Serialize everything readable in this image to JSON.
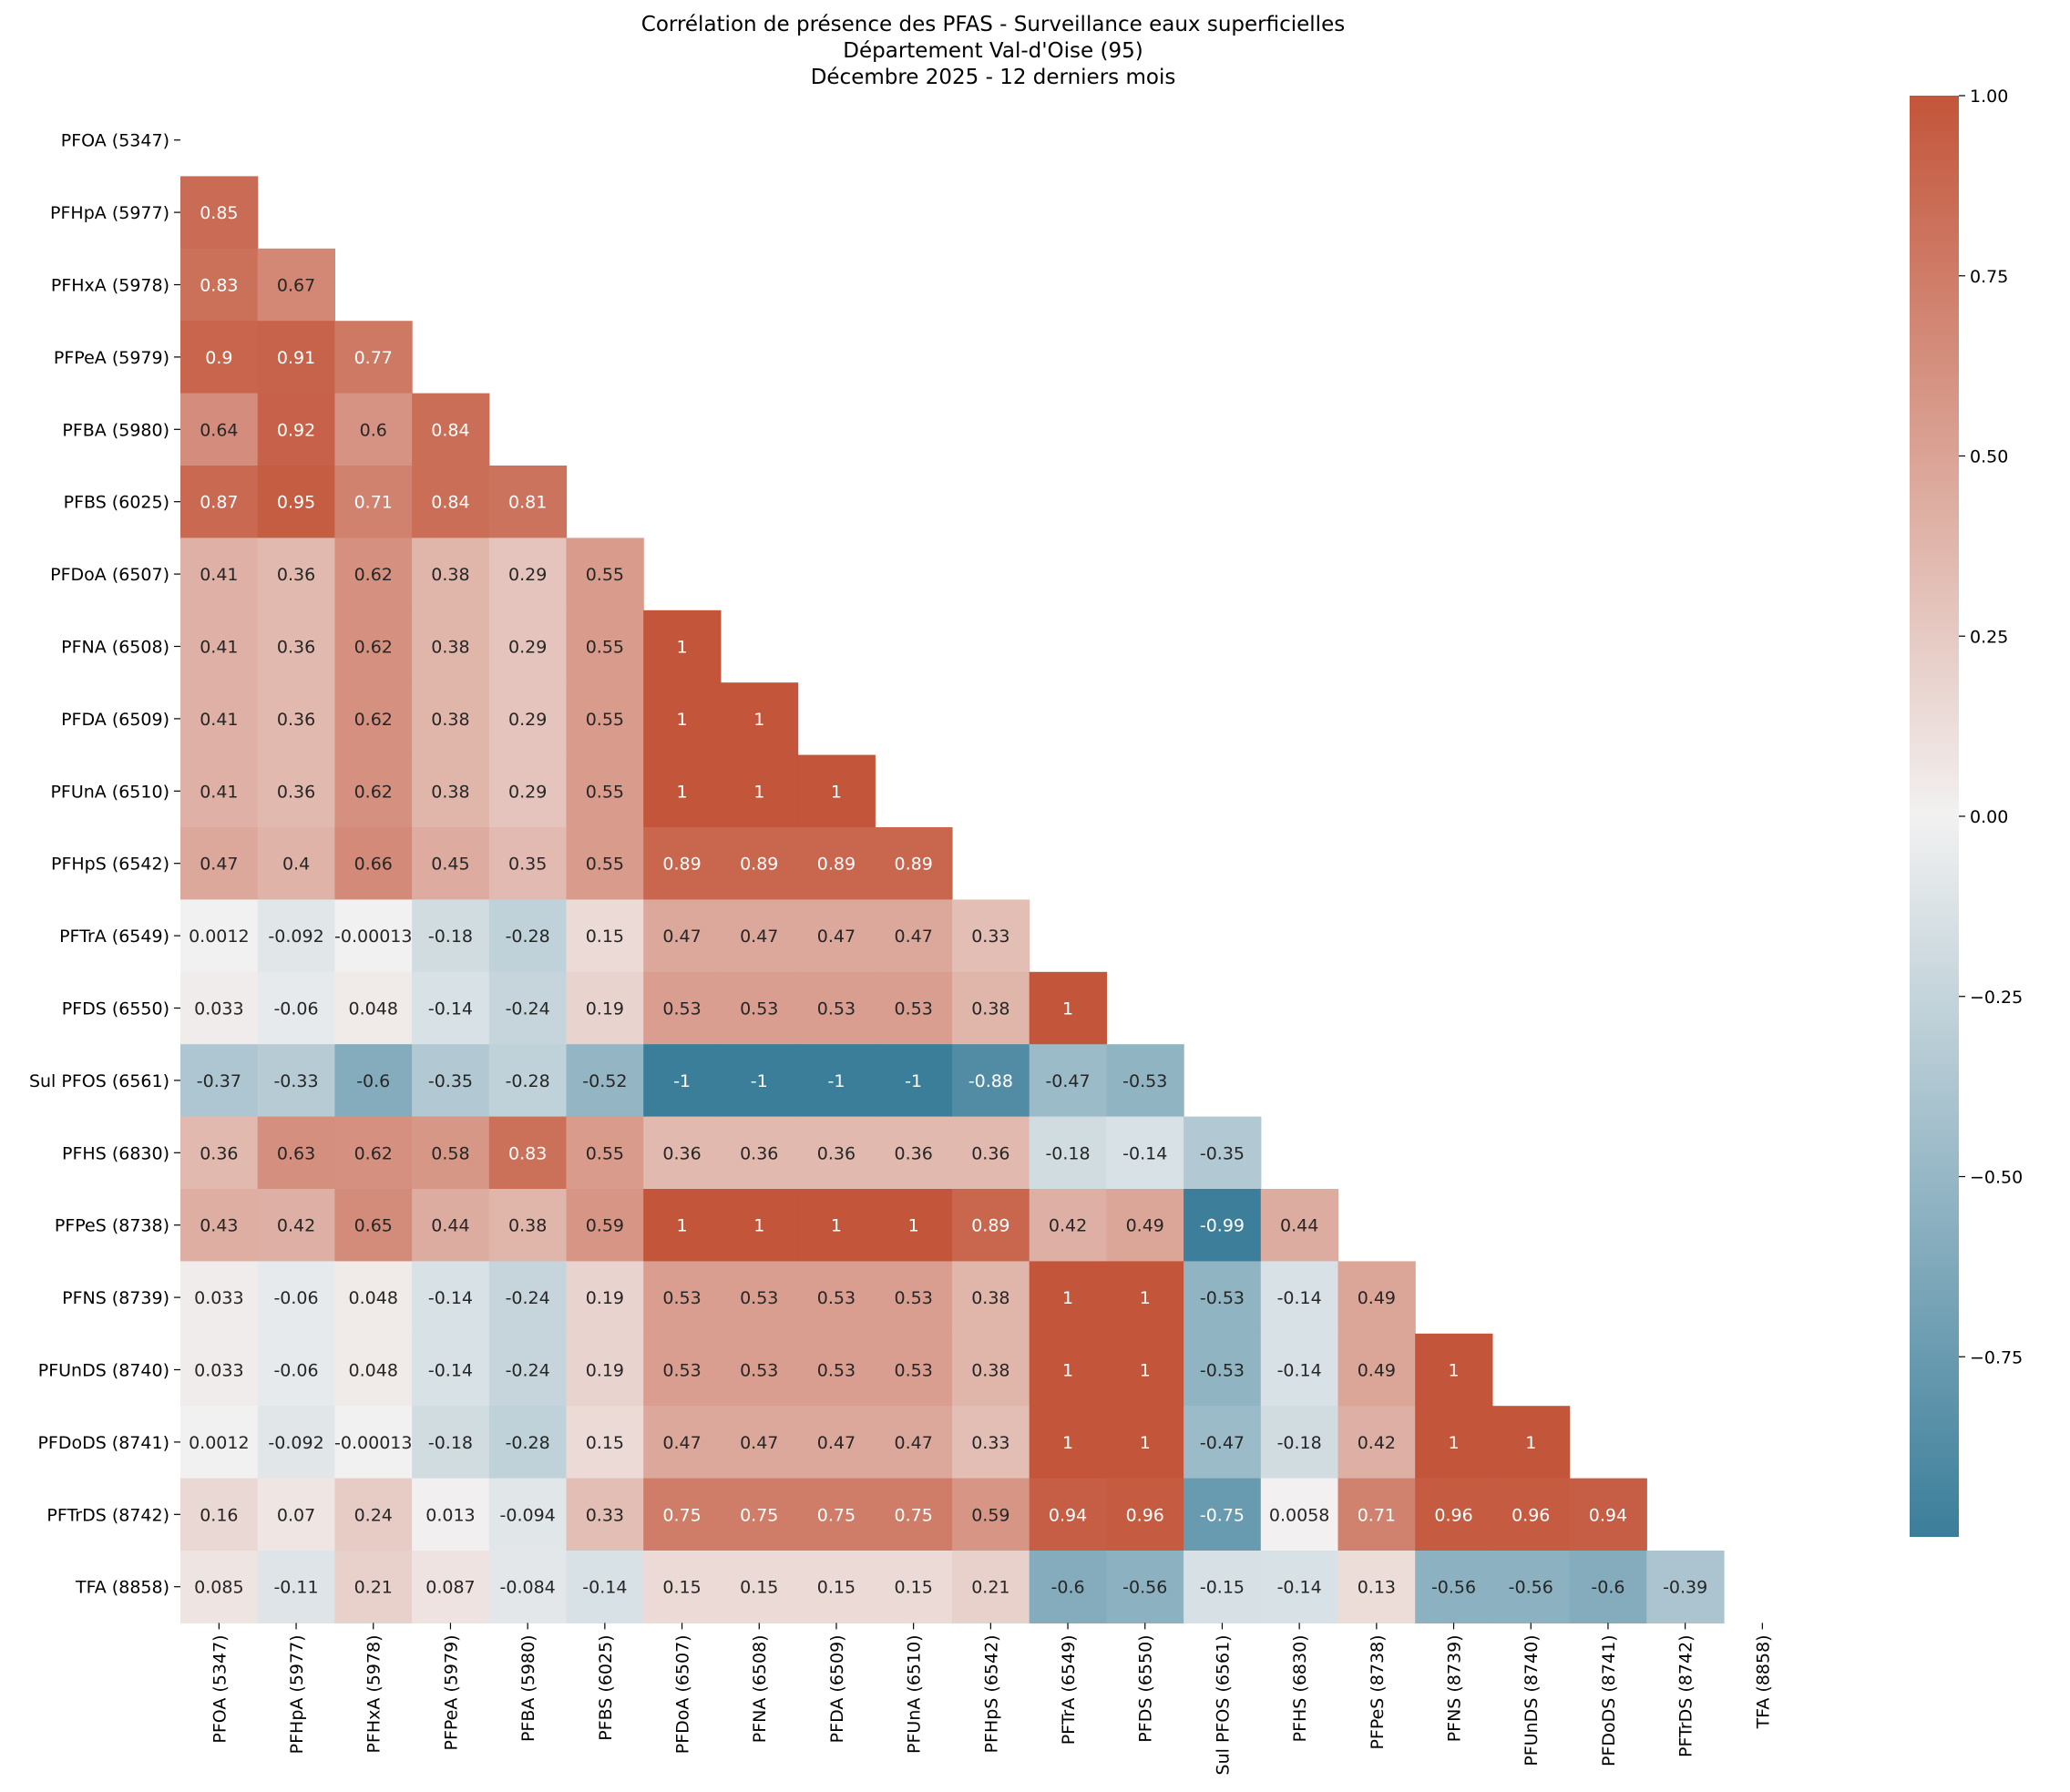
{
  "chart_data": {
    "type": "heatmap",
    "title_lines": [
      "Corrélation de présence des PFAS - Surveillance eaux superficielles",
      "Département Val-d'Oise (95)",
      "Décembre 2025 - 12 derniers mois"
    ],
    "labels": [
      "PFOA (5347)",
      "PFHpA (5977)",
      "PFHxA (5978)",
      "PFPeA (5979)",
      "PFBA (5980)",
      "PFBS (6025)",
      "PFDoA (6507)",
      "PFNA (6508)",
      "PFDA (6509)",
      "PFUnA (6510)",
      "PFHpS (6542)",
      "PFTrA (6549)",
      "PFDS (6550)",
      "Sul PFOS (6561)",
      "PFHS (6830)",
      "PFPeS (8738)",
      "PFNS (8739)",
      "PFUnDS (8740)",
      "PFDoDS (8741)",
      "PFTrDS (8742)",
      "TFA (8858)"
    ],
    "lower_triangle_values": [
      [],
      [
        0.85
      ],
      [
        0.83,
        0.67
      ],
      [
        0.9,
        0.91,
        0.77
      ],
      [
        0.64,
        0.92,
        0.6,
        0.84
      ],
      [
        0.87,
        0.95,
        0.71,
        0.84,
        0.81
      ],
      [
        0.41,
        0.36,
        0.62,
        0.38,
        0.29,
        0.55
      ],
      [
        0.41,
        0.36,
        0.62,
        0.38,
        0.29,
        0.55,
        1
      ],
      [
        0.41,
        0.36,
        0.62,
        0.38,
        0.29,
        0.55,
        1,
        1
      ],
      [
        0.41,
        0.36,
        0.62,
        0.38,
        0.29,
        0.55,
        1,
        1,
        1
      ],
      [
        0.47,
        0.4,
        0.66,
        0.45,
        0.35,
        0.55,
        0.89,
        0.89,
        0.89,
        0.89
      ],
      [
        0.0012,
        -0.092,
        -0.00013,
        -0.18,
        -0.28,
        0.15,
        0.47,
        0.47,
        0.47,
        0.47,
        0.33
      ],
      [
        0.033,
        -0.06,
        0.048,
        -0.14,
        -0.24,
        0.19,
        0.53,
        0.53,
        0.53,
        0.53,
        0.38,
        1
      ],
      [
        -0.37,
        -0.33,
        -0.6,
        -0.35,
        -0.28,
        -0.52,
        -1,
        -1,
        -1,
        -1,
        -0.88,
        -0.47,
        -0.53
      ],
      [
        0.36,
        0.63,
        0.62,
        0.58,
        0.83,
        0.55,
        0.36,
        0.36,
        0.36,
        0.36,
        0.36,
        -0.18,
        -0.14,
        -0.35
      ],
      [
        0.43,
        0.42,
        0.65,
        0.44,
        0.38,
        0.59,
        1,
        1,
        1,
        1,
        0.89,
        0.42,
        0.49,
        -0.99,
        0.44
      ],
      [
        0.033,
        -0.06,
        0.048,
        -0.14,
        -0.24,
        0.19,
        0.53,
        0.53,
        0.53,
        0.53,
        0.38,
        1,
        1,
        -0.53,
        -0.14,
        0.49
      ],
      [
        0.033,
        -0.06,
        0.048,
        -0.14,
        -0.24,
        0.19,
        0.53,
        0.53,
        0.53,
        0.53,
        0.38,
        1,
        1,
        -0.53,
        -0.14,
        0.49,
        1
      ],
      [
        0.0012,
        -0.092,
        -0.00013,
        -0.18,
        -0.28,
        0.15,
        0.47,
        0.47,
        0.47,
        0.47,
        0.33,
        1,
        1,
        -0.47,
        -0.18,
        0.42,
        1,
        1
      ],
      [
        0.16,
        0.07,
        0.24,
        0.013,
        -0.094,
        0.33,
        0.75,
        0.75,
        0.75,
        0.75,
        0.59,
        0.94,
        0.96,
        -0.75,
        0.0058,
        0.71,
        0.96,
        0.96,
        0.94
      ],
      [
        0.085,
        -0.11,
        0.21,
        0.087,
        -0.084,
        -0.14,
        0.15,
        0.15,
        0.15,
        0.15,
        0.21,
        -0.6,
        -0.56,
        -0.15,
        -0.14,
        0.13,
        -0.56,
        -0.56,
        -0.6,
        -0.39
      ]
    ],
    "mask": "upper triangle including diagonal",
    "colorbar": {
      "range": [
        -1,
        1
      ],
      "ticks": [
        1,
        0.75,
        0.5,
        0.25,
        0,
        -0.25,
        -0.5,
        -0.75
      ],
      "tick_labels": [
        "1.00",
        "0.75",
        "0.50",
        "0.25",
        "0.00",
        "−0.25",
        "−0.50",
        "−0.75"
      ],
      "low_color": "#3b7e9a",
      "mid_color": "#f2f1f1",
      "high_color": "#c3553a"
    }
  }
}
